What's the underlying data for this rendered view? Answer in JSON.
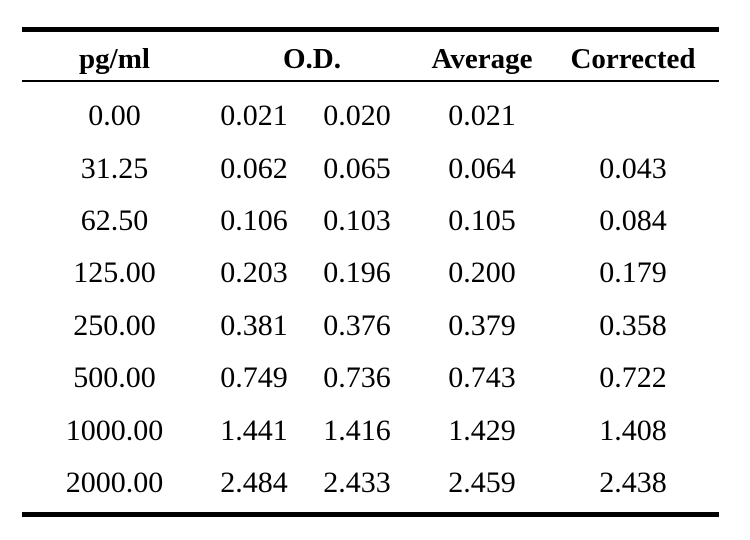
{
  "table": {
    "headers": {
      "pg": "pg/ml",
      "od": "O.D.",
      "avg": "Average",
      "corr": "Corrected"
    },
    "rows": [
      {
        "pg": "0.00",
        "od1": "0.021",
        "od2": "0.020",
        "avg": "0.021",
        "corr": ""
      },
      {
        "pg": "31.25",
        "od1": "0.062",
        "od2": "0.065",
        "avg": "0.064",
        "corr": "0.043"
      },
      {
        "pg": "62.50",
        "od1": "0.106",
        "od2": "0.103",
        "avg": "0.105",
        "corr": "0.084"
      },
      {
        "pg": "125.00",
        "od1": "0.203",
        "od2": "0.196",
        "avg": "0.200",
        "corr": "0.179"
      },
      {
        "pg": "250.00",
        "od1": "0.381",
        "od2": "0.376",
        "avg": "0.379",
        "corr": "0.358"
      },
      {
        "pg": "500.00",
        "od1": "0.749",
        "od2": "0.736",
        "avg": "0.743",
        "corr": "0.722"
      },
      {
        "pg": "1000.00",
        "od1": "1.441",
        "od2": "1.416",
        "avg": "1.429",
        "corr": "1.408"
      },
      {
        "pg": "2000.00",
        "od1": "2.484",
        "od2": "2.433",
        "avg": "2.459",
        "corr": "2.438"
      }
    ]
  }
}
